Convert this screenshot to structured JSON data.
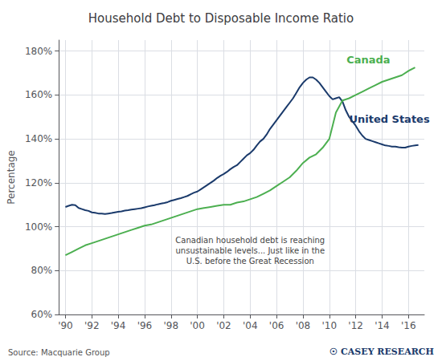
{
  "chart_data": {
    "type": "line",
    "title": "Household Debt to Disposable Income Ratio",
    "ylabel": "Percentage",
    "source": "Source: Macquarie Group",
    "credit": [
      "☉",
      "CASEY RESEARCH"
    ],
    "grid": true,
    "xlim": [
      1989.5,
      2017.2
    ],
    "xticks": [
      {
        "value": 1990,
        "label": "'90"
      },
      {
        "value": 1992,
        "label": "'92"
      },
      {
        "value": 1994,
        "label": "'94"
      },
      {
        "value": 1996,
        "label": "'96"
      },
      {
        "value": 1998,
        "label": "'98"
      },
      {
        "value": 2000,
        "label": "'00"
      },
      {
        "value": 2002,
        "label": "'02"
      },
      {
        "value": 2004,
        "label": "'04"
      },
      {
        "value": 2006,
        "label": "'06"
      },
      {
        "value": 2008,
        "label": "'08"
      },
      {
        "value": 2010,
        "label": "'10"
      },
      {
        "value": 2012,
        "label": "'12"
      },
      {
        "value": 2014,
        "label": "'14"
      },
      {
        "value": 2016,
        "label": "'16"
      }
    ],
    "ylim": [
      60,
      185
    ],
    "yticks": [
      {
        "value": 60,
        "label": "60%"
      },
      {
        "value": 80,
        "label": "80%"
      },
      {
        "value": 100,
        "label": "100%"
      },
      {
        "value": 120,
        "label": "120%"
      },
      {
        "value": 140,
        "label": "140%"
      },
      {
        "value": 160,
        "label": "160%"
      },
      {
        "value": 180,
        "label": "180%"
      }
    ],
    "series": [
      {
        "name": "United States",
        "color": "#1a3a6b",
        "x": [
          1990.0,
          1990.25,
          1990.5,
          1990.75,
          1991.0,
          1991.25,
          1991.5,
          1991.75,
          1992.0,
          1992.25,
          1992.5,
          1992.75,
          1993.0,
          1993.25,
          1993.5,
          1993.75,
          1994.0,
          1994.25,
          1994.5,
          1994.75,
          1995.0,
          1995.25,
          1995.5,
          1995.75,
          1996.0,
          1996.25,
          1996.5,
          1996.75,
          1997.0,
          1997.25,
          1997.5,
          1997.75,
          1998.0,
          1998.25,
          1998.5,
          1998.75,
          1999.0,
          1999.25,
          1999.5,
          1999.75,
          2000.0,
          2000.25,
          2000.5,
          2000.75,
          2001.0,
          2001.25,
          2001.5,
          2001.75,
          2002.0,
          2002.25,
          2002.5,
          2002.75,
          2003.0,
          2003.25,
          2003.5,
          2003.75,
          2004.0,
          2004.25,
          2004.5,
          2004.75,
          2005.0,
          2005.25,
          2005.5,
          2005.75,
          2006.0,
          2006.25,
          2006.5,
          2006.75,
          2007.0,
          2007.25,
          2007.5,
          2007.75,
          2008.0,
          2008.25,
          2008.5,
          2008.75,
          2009.0,
          2009.25,
          2009.5,
          2009.75,
          2010.0,
          2010.25,
          2010.5,
          2010.75,
          2011.0,
          2011.25,
          2011.5,
          2011.75,
          2012.0,
          2012.25,
          2012.5,
          2012.75,
          2013.0,
          2013.25,
          2013.5,
          2013.75,
          2014.0,
          2014.25,
          2014.5,
          2014.75,
          2015.0,
          2015.25,
          2015.5,
          2015.75,
          2016.0,
          2016.25,
          2016.5,
          2016.75
        ],
        "values": [
          109.0,
          109.5,
          110.0,
          109.8,
          108.5,
          108.0,
          107.5,
          107.2,
          106.5,
          106.3,
          106.0,
          106.0,
          105.8,
          106.0,
          106.2,
          106.5,
          106.8,
          107.0,
          107.3,
          107.5,
          107.8,
          108.0,
          108.2,
          108.4,
          108.8,
          109.2,
          109.5,
          109.8,
          110.2,
          110.5,
          110.8,
          111.2,
          111.8,
          112.2,
          112.6,
          113.0,
          113.5,
          114.0,
          114.8,
          115.5,
          116.0,
          117.0,
          118.0,
          119.0,
          120.0,
          121.0,
          122.2,
          123.2,
          124.0,
          125.0,
          126.2,
          127.2,
          128.0,
          129.5,
          131.0,
          132.5,
          133.5,
          135.0,
          137.0,
          138.8,
          140.0,
          142.0,
          144.5,
          146.5,
          148.5,
          150.5,
          152.5,
          154.5,
          156.5,
          158.5,
          161.0,
          163.5,
          165.5,
          167.0,
          168.0,
          168.0,
          167.0,
          165.5,
          163.5,
          161.5,
          159.5,
          158.0,
          158.5,
          159.0,
          157.0,
          153.0,
          150.0,
          148.0,
          146.0,
          143.5,
          141.5,
          140.0,
          139.5,
          139.0,
          138.5,
          138.0,
          137.5,
          137.0,
          136.8,
          136.5,
          136.5,
          136.2,
          136.0,
          136.0,
          136.5,
          136.8,
          137.0,
          137.2
        ]
      },
      {
        "name": "Canada",
        "color": "#4caf50",
        "x": [
          1990.0,
          1990.5,
          1991.0,
          1991.5,
          1992.0,
          1992.5,
          1993.0,
          1993.5,
          1994.0,
          1994.5,
          1995.0,
          1995.5,
          1996.0,
          1996.5,
          1997.0,
          1997.5,
          1998.0,
          1998.5,
          1999.0,
          1999.5,
          2000.0,
          2000.5,
          2001.0,
          2001.5,
          2002.0,
          2002.5,
          2003.0,
          2003.5,
          2004.0,
          2004.5,
          2005.0,
          2005.5,
          2006.0,
          2006.5,
          2007.0,
          2007.5,
          2008.0,
          2008.5,
          2009.0,
          2009.5,
          2010.0,
          2010.5,
          2011.0,
          2011.5,
          2012.0,
          2012.5,
          2013.0,
          2013.5,
          2014.0,
          2014.5,
          2015.0,
          2015.5,
          2016.0,
          2016.5
        ],
        "values": [
          87.0,
          88.5,
          90.0,
          91.5,
          92.5,
          93.5,
          94.5,
          95.5,
          96.5,
          97.5,
          98.5,
          99.5,
          100.5,
          101.0,
          102.0,
          103.0,
          104.0,
          105.0,
          106.0,
          107.0,
          108.0,
          108.5,
          109.0,
          109.5,
          110.0,
          110.0,
          111.0,
          111.5,
          112.5,
          113.5,
          115.0,
          116.5,
          118.5,
          120.5,
          122.5,
          125.5,
          129.0,
          131.5,
          133.0,
          136.0,
          140.0,
          152.0,
          157.5,
          158.5,
          160.0,
          161.5,
          163.0,
          164.5,
          166.0,
          167.0,
          168.0,
          169.0,
          171.0,
          172.5
        ]
      }
    ],
    "annotations": [
      {
        "text": "Canada",
        "x": 2011.3,
        "y": 176,
        "color": "#4caf50"
      },
      {
        "text": "United States",
        "x": 2011.5,
        "y": 149,
        "color": "#1a3a6b"
      },
      {
        "text": "Canadian household debt is reaching\nunsustainable levels... Just like in the\nU.S. before the Great Recession",
        "x": 2004.0,
        "y": 89,
        "color": "#444444"
      }
    ]
  }
}
